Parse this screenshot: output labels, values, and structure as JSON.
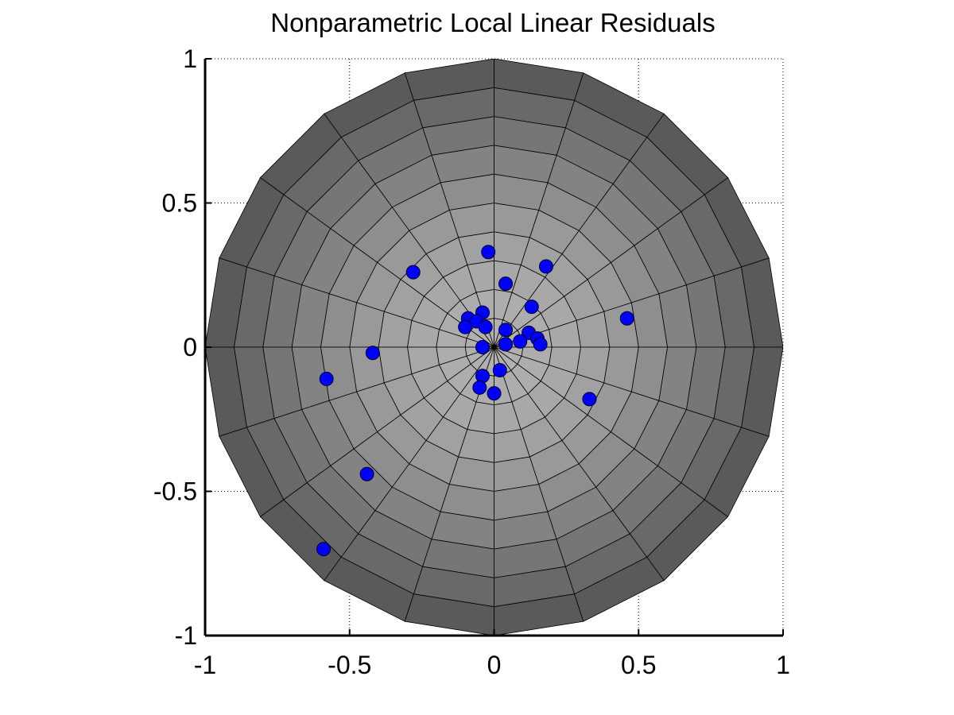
{
  "chart_data": {
    "type": "scatter",
    "title": "Nonparametric Local Linear Residuals",
    "xlabel": "",
    "ylabel": "",
    "xlim": [
      -1,
      1
    ],
    "ylim": [
      -1,
      1
    ],
    "xticks": [
      -1,
      -0.5,
      0,
      0.5,
      1
    ],
    "yticks": [
      -1,
      -0.5,
      0,
      0.5,
      1
    ],
    "xtick_labels": [
      "-1",
      "-0.5",
      "0",
      "0.5",
      "1"
    ],
    "ytick_labels": [
      "-1",
      "-0.5",
      "0",
      "0.5",
      "1"
    ],
    "grid": true,
    "background": "polar disk mesh (gray) with 20 radial spokes and 10 concentric rings",
    "colors": {
      "marker": "#0000ff",
      "disk_inner": "#b0b0b0",
      "disk_outer": "#5a5a5a"
    },
    "points": [
      {
        "x": -0.02,
        "y": 0.33
      },
      {
        "x": 0.18,
        "y": 0.28
      },
      {
        "x": -0.28,
        "y": 0.26
      },
      {
        "x": 0.04,
        "y": 0.22
      },
      {
        "x": 0.13,
        "y": 0.14
      },
      {
        "x": 0.46,
        "y": 0.1
      },
      {
        "x": -0.04,
        "y": 0.12
      },
      {
        "x": -0.09,
        "y": 0.1
      },
      {
        "x": -0.06,
        "y": 0.09
      },
      {
        "x": -0.1,
        "y": 0.07
      },
      {
        "x": -0.03,
        "y": 0.07
      },
      {
        "x": 0.04,
        "y": 0.06
      },
      {
        "x": 0.12,
        "y": 0.05
      },
      {
        "x": 0.15,
        "y": 0.03
      },
      {
        "x": 0.09,
        "y": 0.02
      },
      {
        "x": 0.16,
        "y": 0.01
      },
      {
        "x": 0.04,
        "y": 0.01
      },
      {
        "x": -0.04,
        "y": 0.0
      },
      {
        "x": -0.42,
        "y": -0.02
      },
      {
        "x": 0.02,
        "y": -0.08
      },
      {
        "x": -0.04,
        "y": -0.1
      },
      {
        "x": -0.58,
        "y": -0.11
      },
      {
        "x": -0.05,
        "y": -0.14
      },
      {
        "x": 0.0,
        "y": -0.16
      },
      {
        "x": 0.33,
        "y": -0.18
      },
      {
        "x": -0.44,
        "y": -0.44
      },
      {
        "x": -0.59,
        "y": -0.7
      }
    ]
  }
}
